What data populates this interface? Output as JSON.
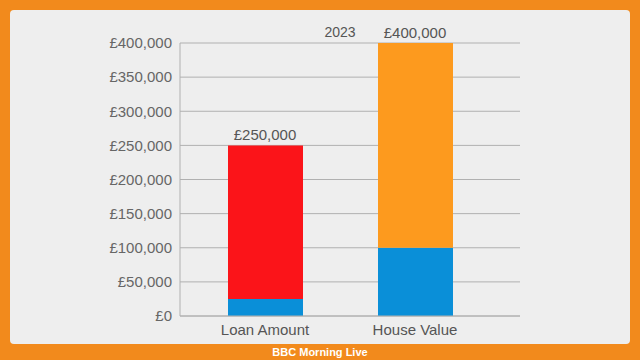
{
  "chart_data": {
    "type": "bar",
    "title": "2023",
    "categories": [
      "Loan Amount",
      "House Value"
    ],
    "series": [
      {
        "color": "#0a8fd8",
        "values": [
          25000,
          100000
        ]
      },
      {
        "colors": [
          "#fb1419",
          "#fd9a1e"
        ],
        "values": [
          225000,
          300000
        ]
      }
    ],
    "stacked": true,
    "totals": [
      250000,
      400000
    ],
    "total_labels": [
      "£250,000",
      "£400,000"
    ],
    "ylim": [
      0,
      400000
    ],
    "yticks": [
      {
        "value": 0,
        "label": "£0"
      },
      {
        "value": 50000,
        "label": "£50,000"
      },
      {
        "value": 100000,
        "label": "£100,000"
      },
      {
        "value": 150000,
        "label": "£150,000"
      },
      {
        "value": 200000,
        "label": "£200,000"
      },
      {
        "value": 250000,
        "label": "£250,000"
      },
      {
        "value": 300000,
        "label": "£300,000"
      },
      {
        "value": 350000,
        "label": "£350,000"
      },
      {
        "value": 400000,
        "label": "£400,000"
      }
    ],
    "grid": true,
    "footer": "BBC Morning Live"
  }
}
